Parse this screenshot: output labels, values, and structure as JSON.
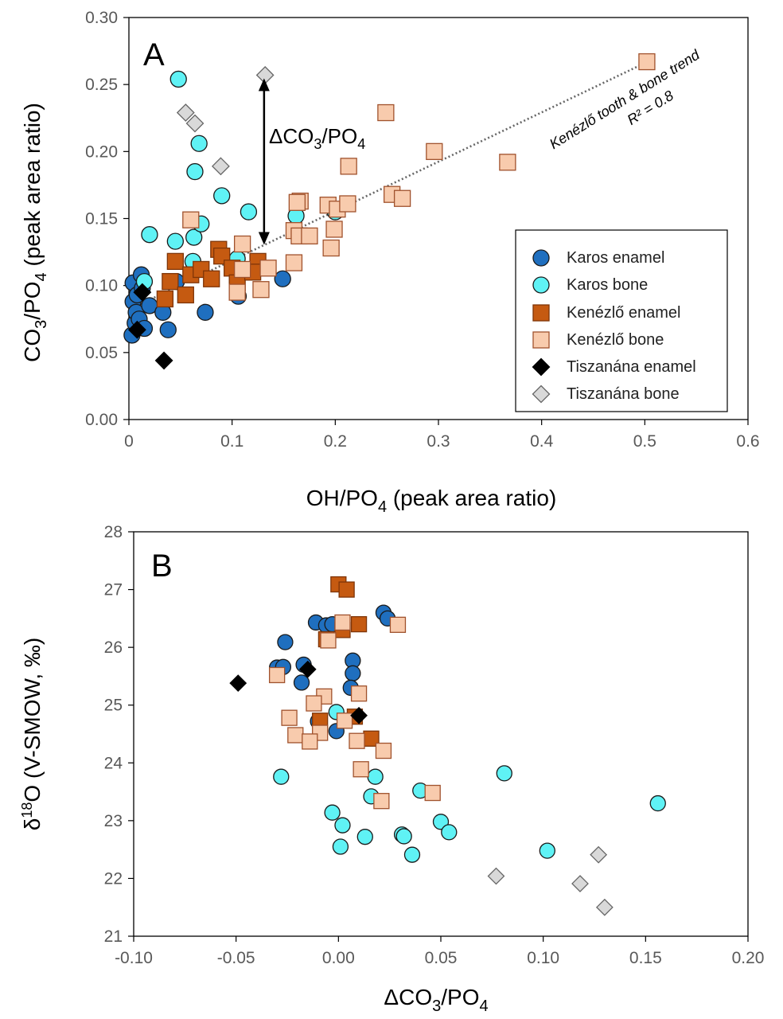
{
  "colors": {
    "karos_enamel": "#1f6fbf",
    "karos_bone": "#5ff2f5",
    "kenezlo_enamel": "#c55a11",
    "kenezlo_bone": "#f8cbad",
    "tiszanana_enamel": "#000000",
    "tiszanana_bone": "#d9d9d9",
    "marker_edge": "#1a1a1a",
    "kenezlo_bone_edge": "#a0522d",
    "kenezlo_enamel_edge": "#7f3508",
    "trend": "#666666",
    "tick_text": "#595959"
  },
  "legend_position": "bottom-right",
  "chart_data": [
    {
      "panel": "A",
      "type": "scatter",
      "xlabel": "OH/PO4 (peak area ratio)",
      "ylabel": "CO3/PO4 (peak area ratio)",
      "xlim": [
        0,
        0.6
      ],
      "ylim": [
        0,
        0.3
      ],
      "xticks": [
        "0",
        "0.1",
        "0.2",
        "0.3",
        "0.4",
        "0.5",
        "0.6"
      ],
      "xtick_values": [
        0,
        0.1,
        0.2,
        0.3,
        0.4,
        0.5,
        0.6
      ],
      "yticks": [
        "0.00",
        "0.05",
        "0.10",
        "0.15",
        "0.20",
        "0.25",
        "0.30"
      ],
      "ytick_values": [
        0,
        0.05,
        0.1,
        0.15,
        0.2,
        0.25,
        0.3
      ],
      "annotations": {
        "delta": "ΔCO3/PO4",
        "trend_label": "Kenézlő tooth & bone trend",
        "r2": "R² = 0.8"
      },
      "arrow": {
        "x": 0.131,
        "y_top": 0.257,
        "y_bottom": 0.128
      },
      "trend_line": {
        "x": [
          0.0,
          0.5
        ],
        "y": [
          0.082,
          0.266
        ]
      },
      "series": [
        {
          "name": "Karos enamel",
          "marker": "circle",
          "points": [
            [
              0.003,
              0.063
            ],
            [
              0.004,
              0.102
            ],
            [
              0.004,
              0.088
            ],
            [
              0.006,
              0.072
            ],
            [
              0.007,
              0.08
            ],
            [
              0.008,
              0.093
            ],
            [
              0.01,
              0.075
            ],
            [
              0.012,
              0.108
            ],
            [
              0.013,
              0.098
            ],
            [
              0.015,
              0.068
            ],
            [
              0.02,
              0.085
            ],
            [
              0.033,
              0.08
            ],
            [
              0.038,
              0.067
            ],
            [
              0.046,
              0.103
            ],
            [
              0.074,
              0.08
            ],
            [
              0.149,
              0.105
            ],
            [
              0.106,
              0.092
            ]
          ]
        },
        {
          "name": "Karos bone",
          "marker": "circle",
          "points": [
            [
              0.048,
              0.254
            ],
            [
              0.068,
              0.206
            ],
            [
              0.064,
              0.185
            ],
            [
              0.09,
              0.167
            ],
            [
              0.116,
              0.155
            ],
            [
              0.02,
              0.138
            ],
            [
              0.045,
              0.133
            ],
            [
              0.063,
              0.136
            ],
            [
              0.07,
              0.146
            ],
            [
              0.062,
              0.118
            ],
            [
              0.015,
              0.103
            ],
            [
              0.162,
              0.152
            ],
            [
              0.2,
              0.155
            ],
            [
              0.105,
              0.12
            ]
          ]
        },
        {
          "name": "Kenézlő enamel",
          "marker": "square",
          "points": [
            [
              0.045,
              0.118
            ],
            [
              0.087,
              0.127
            ],
            [
              0.09,
              0.122
            ],
            [
              0.06,
              0.108
            ],
            [
              0.07,
              0.112
            ],
            [
              0.08,
              0.105
            ],
            [
              0.1,
              0.113
            ],
            [
              0.105,
              0.102
            ],
            [
              0.04,
              0.103
            ],
            [
              0.055,
              0.093
            ],
            [
              0.035,
              0.09
            ],
            [
              0.125,
              0.118
            ],
            [
              0.12,
              0.11
            ]
          ]
        },
        {
          "name": "Kenézlő bone",
          "marker": "square",
          "points": [
            [
              0.502,
              0.267
            ],
            [
              0.249,
              0.229
            ],
            [
              0.296,
              0.2
            ],
            [
              0.213,
              0.189
            ],
            [
              0.367,
              0.192
            ],
            [
              0.166,
              0.163
            ],
            [
              0.163,
              0.162
            ],
            [
              0.193,
              0.16
            ],
            [
              0.202,
              0.157
            ],
            [
              0.212,
              0.161
            ],
            [
              0.255,
              0.168
            ],
            [
              0.265,
              0.165
            ],
            [
              0.16,
              0.141
            ],
            [
              0.165,
              0.137
            ],
            [
              0.175,
              0.137
            ],
            [
              0.199,
              0.142
            ],
            [
              0.196,
              0.128
            ],
            [
              0.16,
              0.117
            ],
            [
              0.11,
              0.131
            ],
            [
              0.135,
              0.113
            ],
            [
              0.11,
              0.112
            ],
            [
              0.128,
              0.097
            ],
            [
              0.105,
              0.095
            ],
            [
              0.06,
              0.149
            ]
          ]
        },
        {
          "name": "Tiszanána enamel",
          "marker": "diamond",
          "points": [
            [
              0.013,
              0.095
            ],
            [
              0.008,
              0.067
            ],
            [
              0.034,
              0.044
            ]
          ]
        },
        {
          "name": "Tiszanána bone",
          "marker": "diamond",
          "points": [
            [
              0.132,
              0.257
            ],
            [
              0.055,
              0.229
            ],
            [
              0.064,
              0.221
            ],
            [
              0.089,
              0.189
            ]
          ]
        }
      ]
    },
    {
      "panel": "B",
      "type": "scatter",
      "xlabel": "ΔCO3/PO4",
      "ylabel": "δ18O (V-SMOW, ‰)",
      "xlim": [
        -0.1,
        0.2
      ],
      "ylim": [
        21,
        28
      ],
      "xticks": [
        "-0.10",
        "-0.05",
        "0.00",
        "0.05",
        "0.10",
        "0.15",
        "0.20"
      ],
      "xtick_values": [
        -0.1,
        -0.05,
        0,
        0.05,
        0.1,
        0.15,
        0.2
      ],
      "yticks": [
        "21",
        "22",
        "23",
        "24",
        "25",
        "26",
        "27",
        "28"
      ],
      "ytick_values": [
        21,
        22,
        23,
        24,
        25,
        26,
        27,
        28
      ],
      "series": [
        {
          "name": "Karos enamel",
          "marker": "circle",
          "points": [
            [
              0.022,
              26.6
            ],
            [
              0.024,
              26.5
            ],
            [
              -0.011,
              26.43
            ],
            [
              -0.006,
              26.38
            ],
            [
              -0.003,
              26.4
            ],
            [
              -0.026,
              26.09
            ],
            [
              -0.03,
              25.65
            ],
            [
              -0.027,
              25.66
            ],
            [
              -0.017,
              25.7
            ],
            [
              -0.018,
              25.39
            ],
            [
              0.007,
              25.77
            ],
            [
              0.007,
              25.55
            ],
            [
              0.006,
              25.3
            ],
            [
              -0.01,
              24.72
            ],
            [
              -0.001,
              24.55
            ]
          ]
        },
        {
          "name": "Karos bone",
          "marker": "circle",
          "points": [
            [
              0.156,
              23.3
            ],
            [
              0.081,
              23.82
            ],
            [
              0.102,
              22.48
            ],
            [
              0.05,
              22.98
            ],
            [
              0.04,
              23.52
            ],
            [
              0.018,
              23.76
            ],
            [
              0.016,
              23.42
            ],
            [
              0.031,
              22.76
            ],
            [
              0.032,
              22.73
            ],
            [
              0.054,
              22.8
            ],
            [
              0.036,
              22.41
            ],
            [
              0.013,
              22.72
            ],
            [
              0.002,
              22.92
            ],
            [
              -0.003,
              23.14
            ],
            [
              0.001,
              22.55
            ],
            [
              -0.028,
              23.76
            ],
            [
              -0.001,
              24.88
            ]
          ]
        },
        {
          "name": "Kenézlő enamel",
          "marker": "square",
          "points": [
            [
              0.0,
              27.09
            ],
            [
              0.004,
              27.0
            ],
            [
              0.01,
              26.4
            ],
            [
              0.002,
              26.3
            ],
            [
              -0.006,
              26.14
            ],
            [
              0.008,
              24.8
            ],
            [
              -0.009,
              24.73
            ],
            [
              0.016,
              24.42
            ]
          ]
        },
        {
          "name": "Kenézlő bone",
          "marker": "square",
          "points": [
            [
              0.029,
              26.39
            ],
            [
              0.002,
              26.43
            ],
            [
              -0.005,
              26.12
            ],
            [
              -0.03,
              25.52
            ],
            [
              -0.007,
              25.15
            ],
            [
              -0.012,
              25.03
            ],
            [
              0.01,
              25.2
            ],
            [
              0.003,
              24.73
            ],
            [
              -0.024,
              24.78
            ],
            [
              -0.021,
              24.48
            ],
            [
              -0.009,
              24.52
            ],
            [
              -0.014,
              24.37
            ],
            [
              0.009,
              24.38
            ],
            [
              0.011,
              23.89
            ],
            [
              0.022,
              24.21
            ],
            [
              0.021,
              23.34
            ],
            [
              0.046,
              23.48
            ]
          ]
        },
        {
          "name": "Tiszanána enamel",
          "marker": "diamond",
          "points": [
            [
              -0.049,
              25.38
            ],
            [
              -0.015,
              25.62
            ],
            [
              0.01,
              24.82
            ]
          ]
        },
        {
          "name": "Tiszanána bone",
          "marker": "diamond",
          "points": [
            [
              0.077,
              22.04
            ],
            [
              0.118,
              21.91
            ],
            [
              0.127,
              22.41
            ],
            [
              0.13,
              21.5
            ]
          ]
        }
      ]
    }
  ]
}
